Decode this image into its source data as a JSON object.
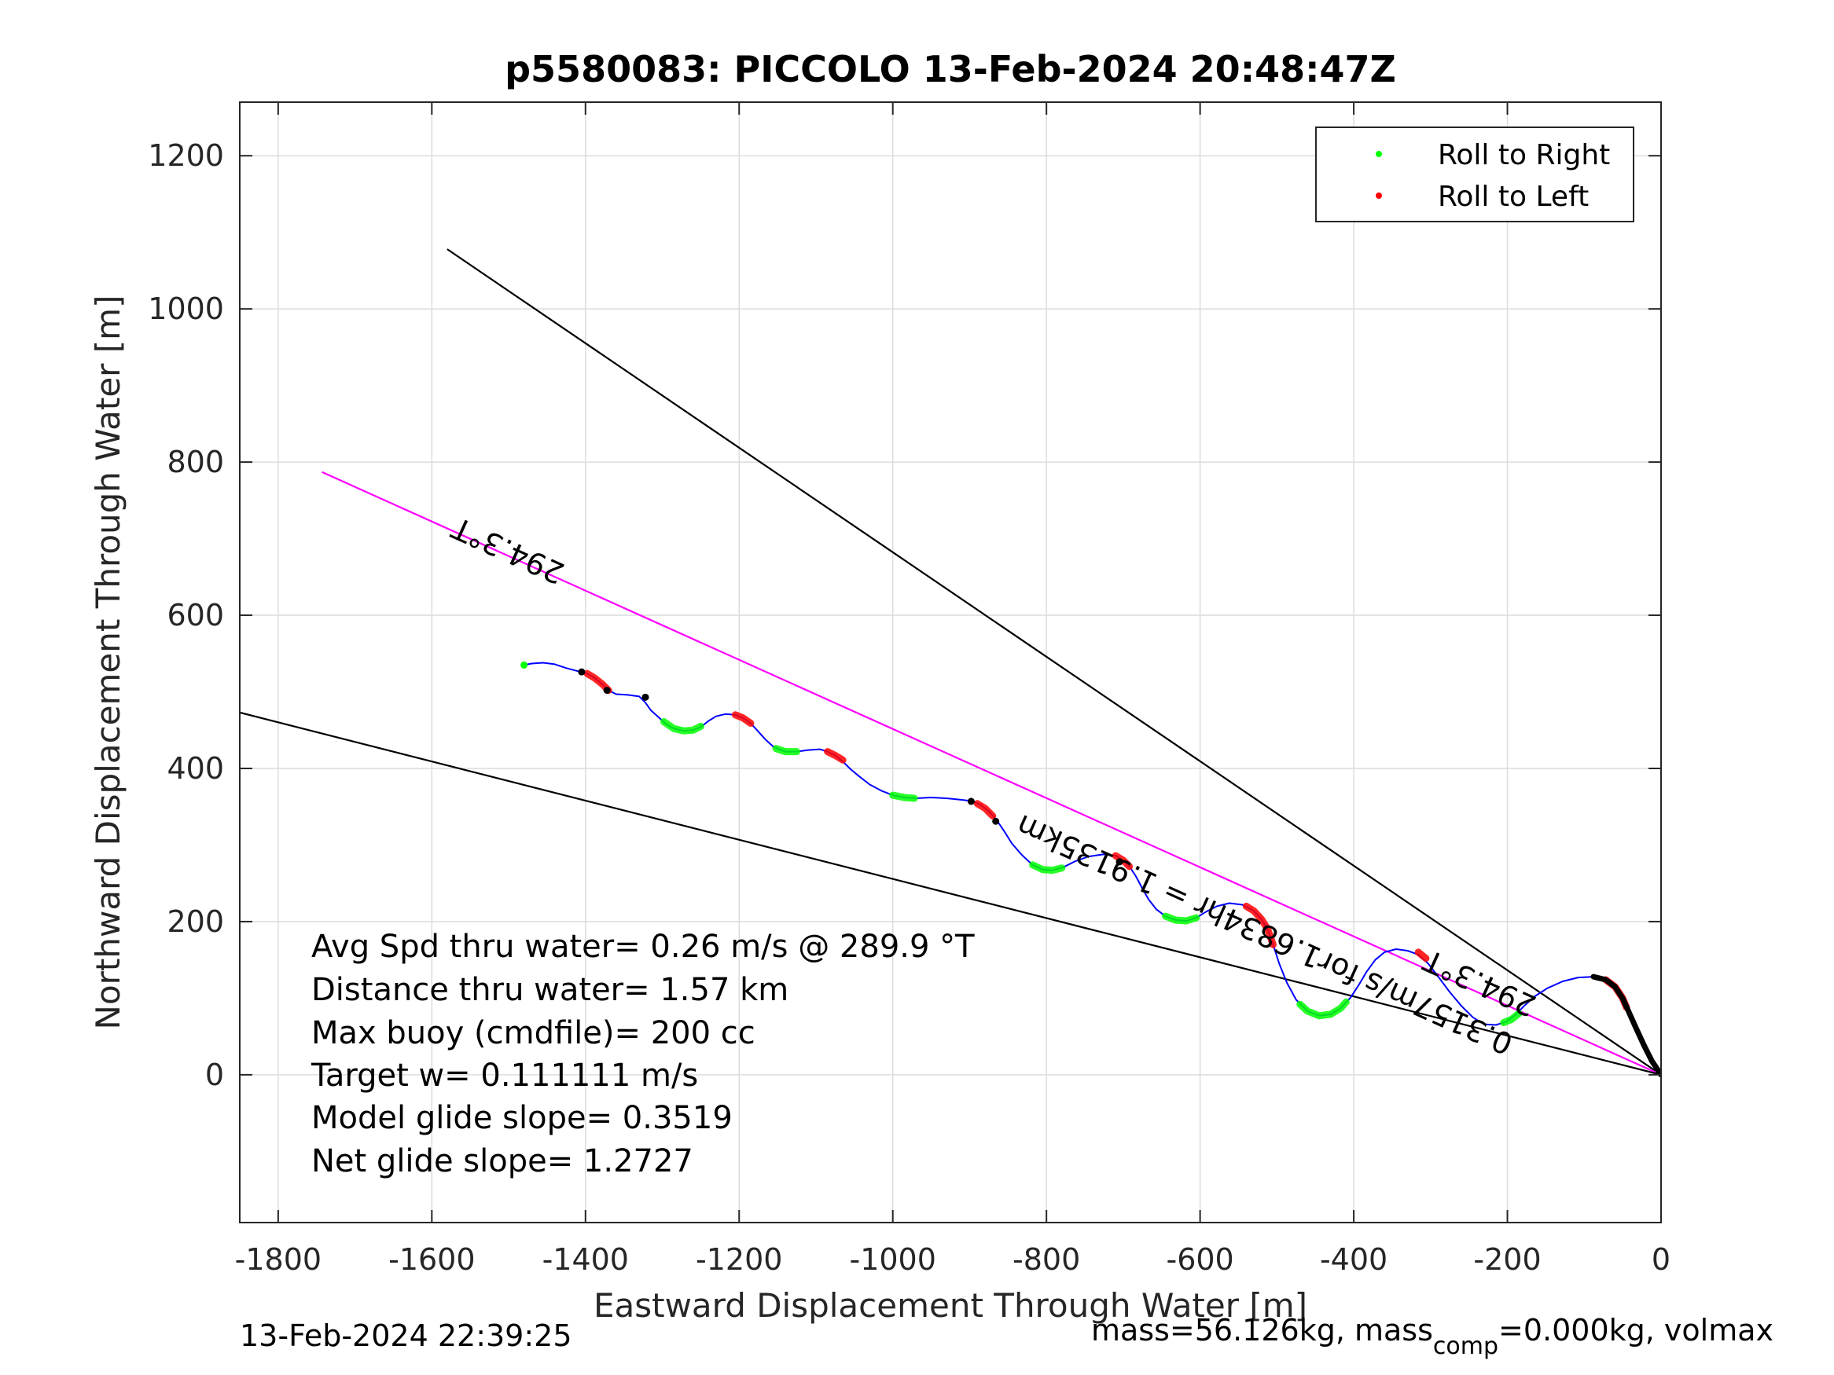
{
  "chart_data": {
    "type": "line",
    "title": "p5580083: PICCOLO 13-Feb-2024 20:48:47Z",
    "xlabel": "Eastward Displacement Through Water [m]",
    "ylabel": "Northward Displacement Through Water [m]",
    "xlim": [
      -1850,
      0
    ],
    "ylim": [
      -193,
      1270
    ],
    "xticks": [
      -1800,
      -1600,
      -1400,
      -1200,
      -1000,
      -800,
      -600,
      -400,
      -200,
      0
    ],
    "yticks": [
      0,
      200,
      400,
      600,
      800,
      1000,
      1200
    ],
    "xtick_labels": [
      "-1800",
      "-1600",
      "-1400",
      "-1200",
      "-1000",
      "-800",
      "-600",
      "-400",
      "-200",
      "0"
    ],
    "ytick_labels": [
      "0",
      "200",
      "400",
      "600",
      "800",
      "1000",
      "1200"
    ],
    "grid": true,
    "legend": {
      "location": "top-right",
      "entries": [
        {
          "label": "Roll to Right",
          "color": "#00ff00"
        },
        {
          "label": "Roll to Left",
          "color": "#ff0000"
        }
      ]
    },
    "track": {
      "name": "glider track",
      "color": "#0000ff",
      "points": [
        [
          -1480,
          535
        ],
        [
          -1470,
          537
        ],
        [
          -1455,
          538
        ],
        [
          -1440,
          536
        ],
        [
          -1425,
          531
        ],
        [
          -1410,
          527
        ],
        [
          -1398,
          524
        ],
        [
          -1388,
          518
        ],
        [
          -1378,
          510
        ],
        [
          -1370,
          502
        ],
        [
          -1360,
          497
        ],
        [
          -1345,
          496
        ],
        [
          -1330,
          494
        ],
        [
          -1322,
          486
        ],
        [
          -1315,
          476
        ],
        [
          -1305,
          467
        ],
        [
          -1295,
          458
        ],
        [
          -1285,
          452
        ],
        [
          -1272,
          449
        ],
        [
          -1260,
          450
        ],
        [
          -1250,
          454
        ],
        [
          -1240,
          462
        ],
        [
          -1230,
          468
        ],
        [
          -1218,
          471
        ],
        [
          -1205,
          470
        ],
        [
          -1195,
          466
        ],
        [
          -1185,
          459
        ],
        [
          -1175,
          448
        ],
        [
          -1165,
          437
        ],
        [
          -1155,
          428
        ],
        [
          -1140,
          422
        ],
        [
          -1125,
          422
        ],
        [
          -1110,
          424
        ],
        [
          -1095,
          425
        ],
        [
          -1085,
          422
        ],
        [
          -1075,
          417
        ],
        [
          -1065,
          409
        ],
        [
          -1055,
          399
        ],
        [
          -1043,
          389
        ],
        [
          -1030,
          379
        ],
        [
          -1015,
          371
        ],
        [
          -1000,
          365
        ],
        [
          -985,
          362
        ],
        [
          -970,
          361
        ],
        [
          -950,
          362
        ],
        [
          -930,
          361
        ],
        [
          -910,
          359
        ],
        [
          -895,
          357
        ],
        [
          -885,
          352
        ],
        [
          -875,
          344
        ],
        [
          -865,
          333
        ],
        [
          -855,
          318
        ],
        [
          -845,
          302
        ],
        [
          -832,
          287
        ],
        [
          -818,
          274
        ],
        [
          -805,
          268
        ],
        [
          -792,
          267
        ],
        [
          -778,
          271
        ],
        [
          -762,
          279
        ],
        [
          -745,
          285
        ],
        [
          -725,
          288
        ],
        [
          -710,
          286
        ],
        [
          -700,
          280
        ],
        [
          -692,
          272
        ],
        [
          -684,
          260
        ],
        [
          -676,
          245
        ],
        [
          -667,
          229
        ],
        [
          -657,
          216
        ],
        [
          -645,
          207
        ],
        [
          -632,
          202
        ],
        [
          -618,
          201
        ],
        [
          -605,
          205
        ],
        [
          -592,
          213
        ],
        [
          -578,
          220
        ],
        [
          -562,
          224
        ],
        [
          -545,
          222
        ],
        [
          -530,
          214
        ],
        [
          -520,
          203
        ],
        [
          -512,
          190
        ],
        [
          -505,
          170
        ],
        [
          -497,
          145
        ],
        [
          -487,
          120
        ],
        [
          -475,
          98
        ],
        [
          -460,
          83
        ],
        [
          -445,
          77
        ],
        [
          -430,
          79
        ],
        [
          -417,
          87
        ],
        [
          -404,
          101
        ],
        [
          -393,
          118
        ],
        [
          -383,
          135
        ],
        [
          -372,
          150
        ],
        [
          -360,
          160
        ],
        [
          -345,
          164
        ],
        [
          -330,
          162
        ],
        [
          -316,
          157
        ],
        [
          -303,
          145
        ],
        [
          -290,
          128
        ],
        [
          -275,
          108
        ],
        [
          -260,
          90
        ],
        [
          -245,
          75
        ],
        [
          -230,
          66
        ],
        [
          -215,
          65
        ],
        [
          -202,
          69
        ],
        [
          -190,
          78
        ],
        [
          -178,
          90
        ],
        [
          -165,
          102
        ],
        [
          -148,
          113
        ],
        [
          -128,
          122
        ],
        [
          -108,
          127
        ],
        [
          -88,
          128
        ],
        [
          -72,
          124
        ],
        [
          -60,
          115
        ],
        [
          -50,
          100
        ],
        [
          -42,
          82
        ],
        [
          -33,
          62
        ],
        [
          -22,
          38
        ],
        [
          -12,
          18
        ],
        [
          0,
          0
        ]
      ]
    },
    "roll_right_segments": [
      [
        [
          -1298,
          461
        ],
        [
          -1285,
          452
        ],
        [
          -1272,
          449
        ],
        [
          -1260,
          450
        ],
        [
          -1250,
          455
        ]
      ],
      [
        [
          -1152,
          426
        ],
        [
          -1140,
          422
        ],
        [
          -1125,
          422
        ]
      ],
      [
        [
          -1000,
          365
        ],
        [
          -985,
          362
        ],
        [
          -972,
          361
        ]
      ],
      [
        [
          -818,
          274
        ],
        [
          -805,
          268
        ],
        [
          -792,
          267
        ],
        [
          -780,
          270
        ]
      ],
      [
        [
          -645,
          207
        ],
        [
          -632,
          202
        ],
        [
          -618,
          201
        ],
        [
          -605,
          205
        ]
      ],
      [
        [
          -470,
          92
        ],
        [
          -460,
          83
        ],
        [
          -445,
          77
        ],
        [
          -430,
          79
        ],
        [
          -417,
          87
        ],
        [
          -410,
          95
        ]
      ],
      [
        [
          -205,
          68
        ],
        [
          -195,
          72
        ],
        [
          -185,
          80
        ]
      ]
    ],
    "roll_left_segments": [
      [
        [
          -1398,
          524
        ],
        [
          -1388,
          518
        ],
        [
          -1378,
          510
        ],
        [
          -1370,
          502
        ]
      ],
      [
        [
          -1205,
          470
        ],
        [
          -1195,
          466
        ],
        [
          -1185,
          459
        ]
      ],
      [
        [
          -1085,
          422
        ],
        [
          -1075,
          417
        ],
        [
          -1065,
          411
        ]
      ],
      [
        [
          -890,
          354
        ],
        [
          -880,
          348
        ],
        [
          -870,
          338
        ]
      ],
      [
        [
          -710,
          286
        ],
        [
          -700,
          280
        ],
        [
          -692,
          272
        ]
      ],
      [
        [
          -540,
          220
        ],
        [
          -530,
          214
        ],
        [
          -520,
          203
        ],
        [
          -512,
          190
        ],
        [
          -505,
          170
        ]
      ],
      [
        [
          -316,
          160
        ],
        [
          -306,
          152
        ]
      ],
      [
        [
          -72,
          124
        ],
        [
          -60,
          115
        ],
        [
          -50,
          100
        ],
        [
          -45,
          88
        ]
      ]
    ],
    "black_marks": [
      [
        -1405,
        526
      ],
      [
        -1372,
        502
      ],
      [
        -1322,
        493
      ],
      [
        -898,
        357
      ],
      [
        -866,
        331
      ],
      [
        -705,
        278
      ]
    ],
    "start_marker": [
      -1480,
      535
    ],
    "heading_lines": [
      {
        "from": [
          -1580,
          1078
        ],
        "to": [
          0,
          0
        ],
        "color": "#000000"
      },
      {
        "from": [
          -1743,
          787
        ],
        "to": [
          0,
          0
        ],
        "color": "#ff00ff"
      },
      {
        "from": [
          -1850,
          473
        ],
        "to": [
          0,
          0
        ],
        "color": "#000000"
      }
    ],
    "annotations": [
      {
        "text": "294.3°T",
        "x": -1425,
        "y": 665,
        "angle_deg": 204.3
      },
      {
        "text": "0.3157m/s for1.6834hr = 1.9135km",
        "x": -190,
        "y": 50,
        "angle_deg": 204.3
      },
      {
        "text": "294.3°T",
        "x": -160,
        "y": 100,
        "angle_deg": 204.3
      }
    ],
    "stats": [
      "Avg Spd thru water=  0.26 m/s @ 289.9 °T",
      "Distance thru water=  1.57 km",
      "Max buoy (cmdfile)= 200 cc",
      "Target w= 0.111111 m/s",
      "Model glide slope= 0.3519",
      "Net glide slope= 1.2727"
    ]
  },
  "footer": {
    "timestamp": "13-Feb-2024 22:39:25",
    "mass_text": "mass=56.126kg, mass",
    "mass_sub": "comp",
    "mass_rest": "=0.000kg, volmax"
  },
  "colors": {
    "track": "#0000ff",
    "roll_right": "#00ff00",
    "roll_left": "#ff0000",
    "heading": "#ff00ff",
    "grid": "#dcdcdc"
  }
}
